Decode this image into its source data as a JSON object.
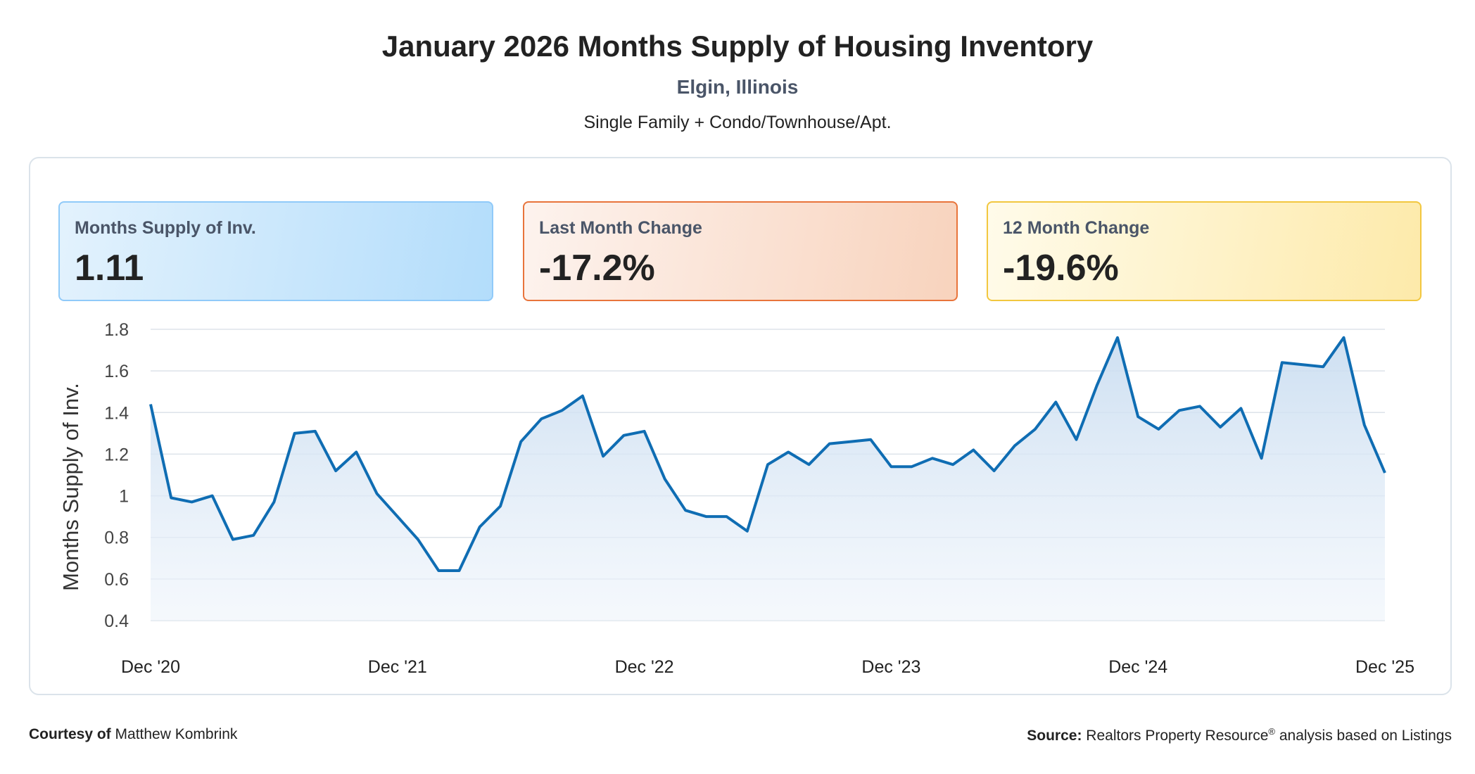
{
  "header": {
    "title": "January 2026 Months Supply of Housing Inventory",
    "location": "Elgin, Illinois",
    "property_types": "Single Family + Condo/Townhouse/Apt."
  },
  "stats": [
    {
      "label": "Months Supply of Inv.",
      "value": "1.11"
    },
    {
      "label": "Last Month Change",
      "value": "-17.2%"
    },
    {
      "label": "12 Month Change",
      "value": "-19.6%"
    }
  ],
  "footer": {
    "courtesy_label": "Courtesy of",
    "courtesy_name": "Matthew Kombrink",
    "source_label": "Source:",
    "source_text_1": "Realtors Property Resource",
    "source_reg": "®",
    "source_text_2": " analysis based on Listings"
  },
  "colors": {
    "line": "#0f6db3",
    "area_top": "#c8dcf0",
    "grid": "#dde3ea"
  },
  "chart_data": {
    "type": "area",
    "ylabel": "Months Supply of Inv.",
    "ylim": [
      0.4,
      1.8
    ],
    "yticks": [
      0.4,
      0.6,
      0.8,
      1,
      1.2,
      1.4,
      1.6,
      1.8
    ],
    "ytick_labels": [
      "0.4",
      "0.6",
      "0.8",
      "1",
      "1.2",
      "1.4",
      "1.6",
      "1.8"
    ],
    "xtick_labels": [
      "Dec '20",
      "Dec '21",
      "Dec '22",
      "Dec '23",
      "Dec '24",
      "Dec '25"
    ],
    "x_start": "2020-12",
    "x_end": "2025-12",
    "grid": true,
    "series": [
      {
        "values": [
          1.44,
          0.99,
          0.97,
          1.0,
          0.79,
          0.81,
          0.97,
          1.3,
          1.31,
          1.12,
          1.21,
          1.01,
          0.9,
          0.79,
          0.64,
          0.64,
          0.85,
          0.95,
          1.26,
          1.37,
          1.41,
          1.48,
          1.19,
          1.29,
          1.31,
          1.08,
          0.93,
          0.9,
          0.9,
          0.83,
          1.15,
          1.21,
          1.15,
          1.25,
          1.26,
          1.27,
          1.14,
          1.14,
          1.18,
          1.15,
          1.22,
          1.12,
          1.24,
          1.32,
          1.45,
          1.27,
          1.53,
          1.76,
          1.38,
          1.32,
          1.41,
          1.43,
          1.33,
          1.42,
          1.18,
          1.64,
          1.63,
          1.62,
          1.76,
          1.34,
          1.11
        ]
      }
    ]
  }
}
